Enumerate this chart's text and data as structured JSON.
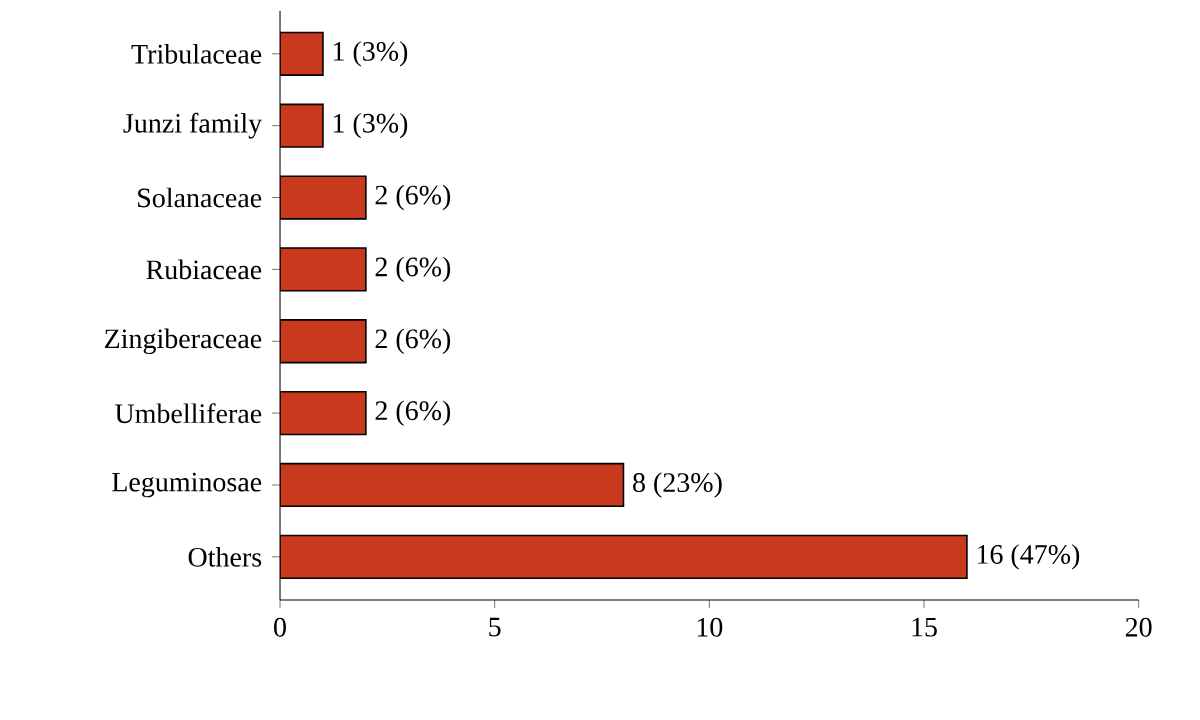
{
  "chart_data": {
    "type": "bar",
    "orientation": "horizontal",
    "categories": [
      "Tribulaceae",
      "Junzi family",
      "Solanaceae",
      "Rubiaceae",
      "Zingiberaceae",
      "Umbelliferae",
      "Leguminosae",
      "Others"
    ],
    "values": [
      1,
      1,
      2,
      2,
      2,
      2,
      8,
      16
    ],
    "value_labels": [
      "1 (3%)",
      "1 (3%)",
      "2 (6%)",
      "2 (6%)",
      "2 (6%)",
      "2 (6%)",
      "8 (23%)",
      "16 (47%)"
    ],
    "color": "#c8391e",
    "xlim": [
      0,
      20
    ],
    "xticks": [
      0,
      5,
      10,
      15,
      20
    ],
    "grid": false
  }
}
